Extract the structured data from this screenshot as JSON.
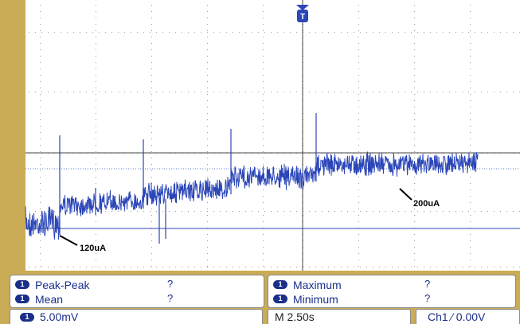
{
  "colors": {
    "bezel": "#c9ac55",
    "trace": "#2b46b8",
    "accent": "#1a2f8a",
    "grid": "#9a9a9a",
    "crosshair": "#444444"
  },
  "icons": {
    "trigger_marker": "trigger-position-marker-icon",
    "channel_badge": "channel-1-badge-icon"
  },
  "annotations": [
    {
      "label": "120uA"
    },
    {
      "label": "200uA"
    }
  ],
  "measurements": {
    "left": [
      {
        "channel": "1",
        "label": "Peak-Peak",
        "value": "?"
      },
      {
        "channel": "1",
        "label": "Mean",
        "value": "?"
      }
    ],
    "right": [
      {
        "channel": "1",
        "label": "Maximum",
        "value": "?"
      },
      {
        "channel": "1",
        "label": "Minimum",
        "value": "?"
      }
    ]
  },
  "status": {
    "channel": "1",
    "vertical_scale": "5.00mV",
    "horizontal_scale": "M 2.50s",
    "trigger": "Ch1 ∕ 0.00V"
  }
}
